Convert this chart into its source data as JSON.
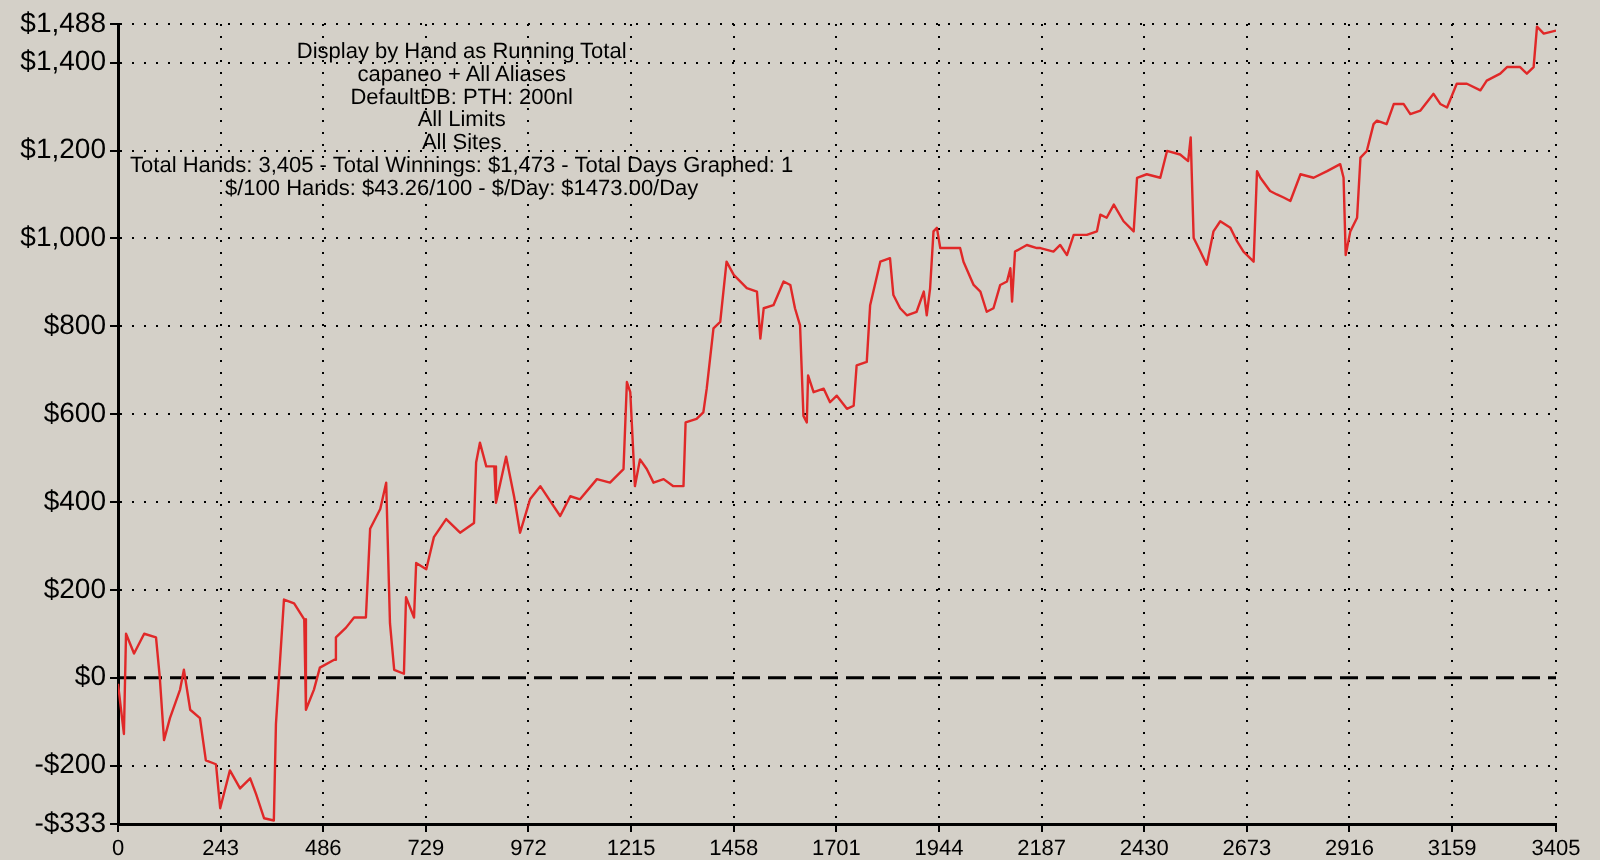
{
  "chart_data": {
    "type": "line",
    "title": "Display by Hand as Running Total",
    "annotations": [
      "capaneo + All Aliases",
      "DefaultDB: PTH: 200nl",
      "All Limits",
      "All Sites",
      "Total Hands: 3,405 - Total Winnings: $1,473 - Total Days Graphed: 1",
      "$/100 Hands: $43.26/100 - $/Day: $1473.00/Day"
    ],
    "xlim": [
      0,
      3405
    ],
    "xticks": [
      0,
      243,
      486,
      729,
      972,
      1215,
      1458,
      1701,
      1944,
      2187,
      2430,
      2673,
      2916,
      3159,
      3405
    ],
    "ylim": [
      -333,
      1488
    ],
    "yticks": [
      {
        "value": -333,
        "label": "-$333"
      },
      {
        "value": -200,
        "label": "-$200"
      },
      {
        "value": 0,
        "label": "$0"
      },
      {
        "value": 200,
        "label": "$200"
      },
      {
        "value": 400,
        "label": "$400"
      },
      {
        "value": 600,
        "label": "$600"
      },
      {
        "value": 800,
        "label": "$800"
      },
      {
        "value": 1000,
        "label": "$1,000"
      },
      {
        "value": 1200,
        "label": "$1,200"
      },
      {
        "value": 1400,
        "label": "$1,400"
      },
      {
        "value": 1488,
        "label": "$1,488"
      }
    ],
    "grid": true,
    "legend": false,
    "marker": "none",
    "line_style": "solid",
    "ref_lines": [
      {
        "axis": "y",
        "value": 0,
        "label": null,
        "color": "#000000",
        "line_style": "dashed"
      }
    ],
    "series": [
      {
        "color": "#e02828",
        "x": [
          0,
          14,
          19,
          38,
          62,
          90,
          99,
          109,
          123,
          147,
          156,
          171,
          194,
          208,
          232,
          242,
          265,
          289,
          313,
          327,
          346,
          369,
          374,
          393,
          417,
          441,
          445,
          464,
          478,
          512,
          516,
          540,
          559,
          587,
          597,
          621,
          635,
          644,
          654,
          677,
          682,
          701,
          706,
          730,
          748,
          777,
          810,
          843,
          848,
          857,
          872,
          891,
          895,
          919,
          938,
          952,
          976,
          1000,
          1047,
          1071,
          1094,
          1134,
          1165,
          1197,
          1205,
          1213,
          1224,
          1236,
          1252,
          1268,
          1292,
          1315,
          1339,
          1344,
          1370,
          1386,
          1394,
          1410,
          1426,
          1441,
          1458,
          1489,
          1513,
          1521,
          1529,
          1552,
          1576,
          1592,
          1603,
          1615,
          1623,
          1631,
          1634,
          1647,
          1671,
          1686,
          1702,
          1726,
          1742,
          1749,
          1773,
          1781,
          1805,
          1828,
          1836,
          1852,
          1868,
          1891,
          1908,
          1915,
          1923,
          1931,
          1939,
          1947,
          1994,
          2002,
          2026,
          2042,
          2057,
          2073,
          2089,
          2105,
          2113,
          2117,
          2124,
          2152,
          2176,
          2184,
          2215,
          2231,
          2247,
          2263,
          2294,
          2318,
          2326,
          2341,
          2358,
          2381,
          2405,
          2413,
          2436,
          2468,
          2484,
          2515,
          2534,
          2540,
          2547,
          2563,
          2578,
          2594,
          2610,
          2634,
          2650,
          2665,
          2689,
          2697,
          2705,
          2728,
          2744,
          2760,
          2776,
          2800,
          2831,
          2863,
          2894,
          2902,
          2907,
          2918,
          2934,
          2942,
          2957,
          2973,
          2981,
          3004,
          3021,
          3044,
          3060,
          3084,
          3115,
          3131,
          3147,
          3170,
          3194,
          3226,
          3241,
          3273,
          3289,
          3320,
          3336,
          3352,
          3360,
          3376,
          3405
        ],
        "values": [
          -14,
          -128,
          100,
          55,
          100,
          92,
          0,
          -142,
          -92,
          -27,
          18,
          -73,
          -92,
          -188,
          -197,
          -297,
          -211,
          -252,
          -229,
          -265,
          -320,
          -325,
          -105,
          178,
          169,
          133,
          -73,
          -27,
          23,
          41,
          92,
          114,
          137,
          137,
          339,
          384,
          444,
          124,
          18,
          9,
          183,
          137,
          261,
          247,
          320,
          361,
          330,
          352,
          490,
          535,
          481,
          481,
          398,
          503,
          412,
          330,
          407,
          436,
          368,
          413,
          406,
          452,
          444,
          475,
          673,
          650,
          436,
          497,
          475,
          444,
          452,
          436,
          436,
          581,
          589,
          604,
          658,
          795,
          810,
          947,
          917,
          887,
          879,
          772,
          841,
          848,
          902,
          894,
          841,
          802,
          596,
          581,
          688,
          650,
          658,
          627,
          642,
          612,
          619,
          711,
          719,
          848,
          947,
          955,
          871,
          841,
          825,
          833,
          879,
          825,
          887,
          1016,
          1024,
          978,
          978,
          947,
          894,
          879,
          833,
          841,
          894,
          902,
          932,
          856,
          970,
          985,
          978,
          978,
          970,
          985,
          962,
          1008,
          1008,
          1016,
          1054,
          1047,
          1077,
          1039,
          1016,
          1138,
          1146,
          1138,
          1199,
          1191,
          1176,
          1230,
          1001,
          970,
          940,
          1016,
          1039,
          1024,
          993,
          970,
          947,
          1153,
          1138,
          1108,
          1100,
          1093,
          1085,
          1146,
          1138,
          1153,
          1169,
          1138,
          962,
          1016,
          1047,
          1184,
          1199,
          1260,
          1268,
          1260,
          1306,
          1306,
          1283,
          1291,
          1329,
          1306,
          1298,
          1352,
          1352,
          1337,
          1359,
          1375,
          1390,
          1390,
          1375,
          1390,
          1482,
          1466,
          1473
        ]
      }
    ]
  }
}
